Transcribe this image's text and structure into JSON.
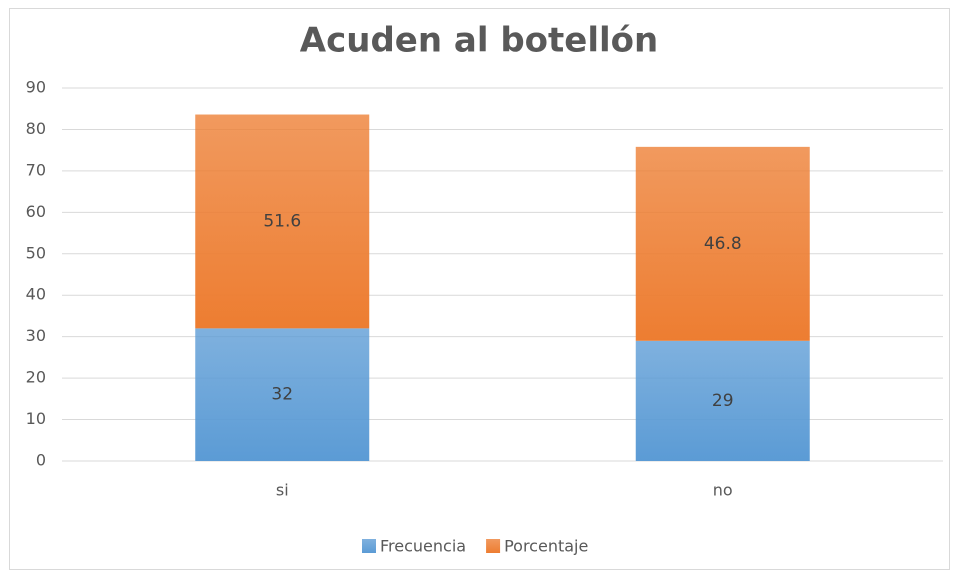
{
  "chart_data": {
    "type": "bar",
    "stacked": true,
    "title": "Acuden al botellón",
    "categories": [
      "si",
      "no"
    ],
    "series": [
      {
        "name": "Frecuencia",
        "color": "#5b9bd5",
        "values": [
          32,
          29
        ]
      },
      {
        "name": "Porcentaje",
        "color": "#ed7d31",
        "values": [
          51.6,
          46.8
        ]
      }
    ],
    "ylim": [
      0,
      90
    ],
    "yticks": [
      0,
      10,
      20,
      30,
      40,
      50,
      60,
      70,
      80,
      90
    ],
    "grid": true,
    "legend": "bottom",
    "data_labels": true
  }
}
